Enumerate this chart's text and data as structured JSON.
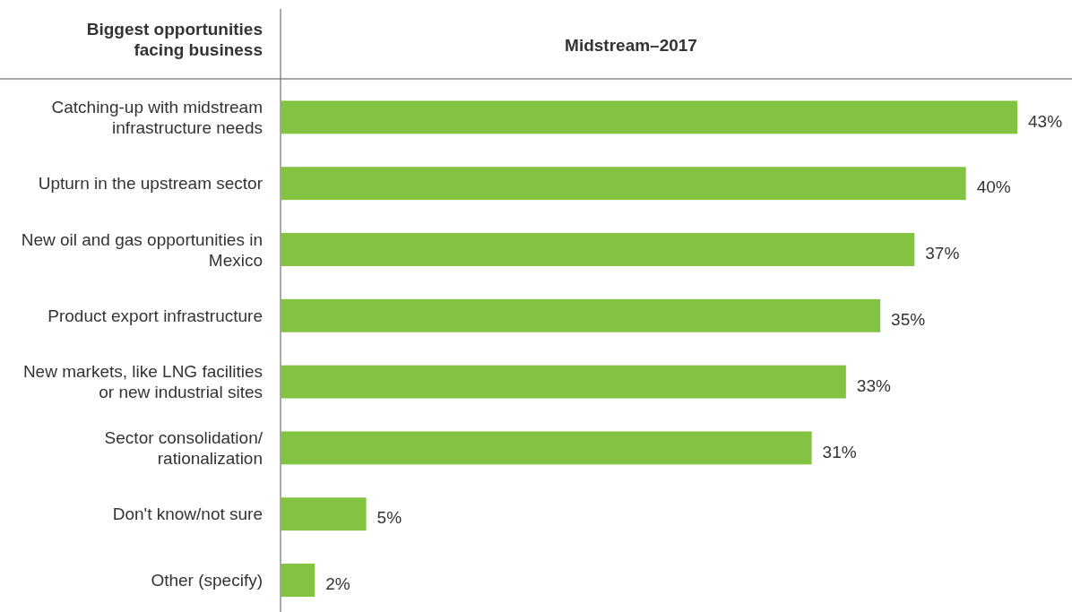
{
  "chart_data": {
    "type": "bar",
    "orientation": "horizontal",
    "title": "Midstream–2017",
    "ylabel": "Biggest opportunities facing business",
    "categories": [
      "Catching-up with midstream infrastructure needs",
      "Upturn in the upstream sector",
      "New oil and gas opportunities in Mexico",
      "Product export infrastructure",
      "New markets, like LNG facilities or new industrial sites",
      "Sector consolidation/ rationalization",
      "Don't know/not sure",
      "Other (specify)"
    ],
    "values": [
      43,
      40,
      37,
      35,
      33,
      31,
      5,
      2
    ],
    "value_labels": [
      "43%",
      "40%",
      "37%",
      "35%",
      "33%",
      "31%",
      "5%",
      "2%"
    ],
    "color": "#82c341"
  }
}
